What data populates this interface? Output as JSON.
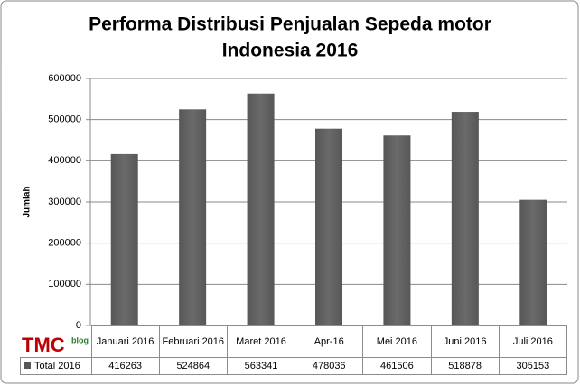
{
  "chart_data": {
    "type": "bar",
    "title": [
      "Performa Distribusi Penjualan Sepeda motor",
      "Indonesia 2016"
    ],
    "y_label": "Jumlah",
    "categories": [
      "Januari 2016",
      "Februari 2016",
      "Maret 2016",
      "Apr-16",
      "Mei 2016",
      "Juni 2016",
      "Juli 2016"
    ],
    "series": [
      {
        "name": "Total 2016",
        "color": "#575757",
        "values": [
          416263,
          524864,
          563341,
          478036,
          461506,
          518878,
          305153
        ]
      }
    ],
    "ylim": [
      0,
      600000
    ],
    "yticks": [
      0,
      100000,
      200000,
      300000,
      400000,
      500000,
      600000
    ],
    "grid": true,
    "logo": {
      "main": "TMC",
      "sub": "blog"
    }
  }
}
